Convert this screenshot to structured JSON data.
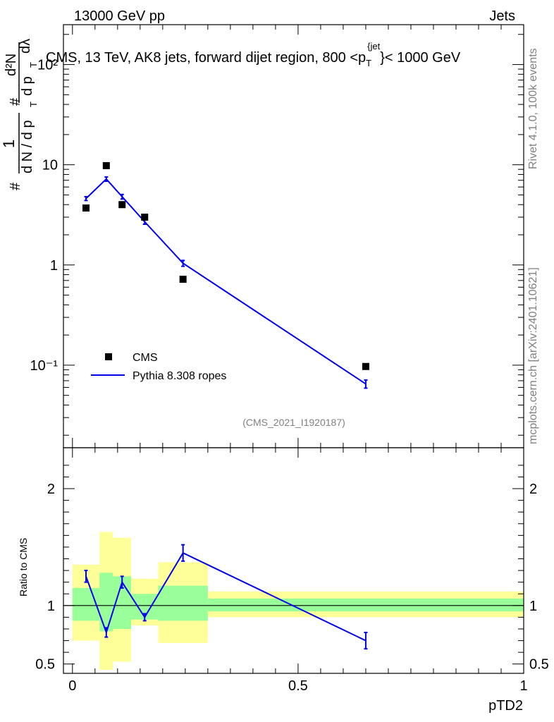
{
  "header": {
    "left": "13000 GeV pp",
    "right": "Jets"
  },
  "side_labels": {
    "rivet": "Rivet 4.1.0,  100k events",
    "mcplots": "mcplots.cern.ch [arXiv:2401.10621]"
  },
  "chart_data": [
    {
      "type": "scatter",
      "title": "CMS, 13 TeV, AK8 jets, forward dijet region, 800 <p_T^{jet}< 1000 GeV",
      "title_parts": {
        "main": "CMS, 13 TeV, AK8 jets, forward dijet region, 800 <p",
        "sub": "T",
        "sup": "{jet",
        "tail": "}< 1000 GeV"
      },
      "ylabel": "1/N dN/dp_T dλ (1/dN/dp_T d²N/dp_T dλ)",
      "ylabel_parts": {
        "num": "1",
        "den": "d N / d p",
        "den_sub": "T",
        "frac2_num": "d²N",
        "frac2_den": "d p",
        "frac2_sub": "T",
        "lambda": "dλ",
        "hash": "#"
      },
      "yscale": "log",
      "ylim": [
        0.015,
        250
      ],
      "xlim": [
        -0.02,
        1.0
      ],
      "ytick_labels": [
        "10⁻¹",
        "1",
        "10",
        "10²"
      ],
      "ytick_values": [
        0.1,
        1,
        10,
        100
      ],
      "watermark": "(CMS_2021_I1920187)",
      "legend": {
        "position": "bottom-left",
        "entries": [
          "CMS",
          "Pythia 8.308 ropes"
        ]
      },
      "series": [
        {
          "name": "CMS",
          "marker": "square",
          "color": "#000000",
          "x": [
            0.03,
            0.075,
            0.11,
            0.16,
            0.245,
            0.65
          ],
          "y": [
            3.7,
            9.8,
            4.0,
            3.0,
            0.72,
            0.097
          ]
        },
        {
          "name": "Pythia 8.308 ropes",
          "marker": "line",
          "color": "#0000ee",
          "x": [
            0.03,
            0.075,
            0.11,
            0.16,
            0.245,
            0.65
          ],
          "y": [
            4.6,
            7.2,
            4.8,
            2.7,
            1.04,
            0.065
          ],
          "yerr": [
            0.2,
            0.35,
            0.25,
            0.15,
            0.07,
            0.006
          ]
        }
      ]
    },
    {
      "type": "line",
      "ylabel": "Ratio to CMS",
      "xlabel": "pTD2",
      "ylim": [
        0.42,
        2.35
      ],
      "xlim": [
        -0.02,
        1.0
      ],
      "xtick_labels": [
        "0",
        "0.5",
        "1"
      ],
      "xtick_values": [
        0,
        0.5,
        1
      ],
      "ytick_labels": [
        "0.5",
        "1",
        "2"
      ],
      "ytick_values": [
        0.5,
        1,
        2
      ],
      "reference_line": 1,
      "bands": [
        {
          "xlo": 0.0,
          "xhi": 0.06,
          "inner": [
            0.87,
            1.15
          ],
          "outer": [
            0.7,
            1.35
          ]
        },
        {
          "xlo": 0.06,
          "xhi": 0.09,
          "inner": [
            0.78,
            1.28
          ],
          "outer": [
            0.45,
            1.63
          ]
        },
        {
          "xlo": 0.09,
          "xhi": 0.13,
          "inner": [
            0.8,
            1.25
          ],
          "outer": [
            0.52,
            1.58
          ]
        },
        {
          "xlo": 0.13,
          "xhi": 0.19,
          "inner": [
            0.88,
            1.1
          ],
          "outer": [
            0.83,
            1.23
          ]
        },
        {
          "xlo": 0.19,
          "xhi": 0.3,
          "inner": [
            0.87,
            1.17
          ],
          "outer": [
            0.68,
            1.37
          ]
        },
        {
          "xlo": 0.3,
          "xhi": 1.0,
          "inner": [
            0.95,
            1.06
          ],
          "outer": [
            0.9,
            1.12
          ]
        }
      ],
      "series": [
        {
          "name": "Pythia 8.308 ropes / CMS",
          "color": "#0000ee",
          "x": [
            0.03,
            0.075,
            0.11,
            0.16,
            0.245,
            0.65
          ],
          "y": [
            1.25,
            0.77,
            1.2,
            0.9,
            1.45,
            0.7
          ],
          "yerr": [
            0.05,
            0.04,
            0.05,
            0.03,
            0.07,
            0.07
          ]
        }
      ]
    }
  ]
}
